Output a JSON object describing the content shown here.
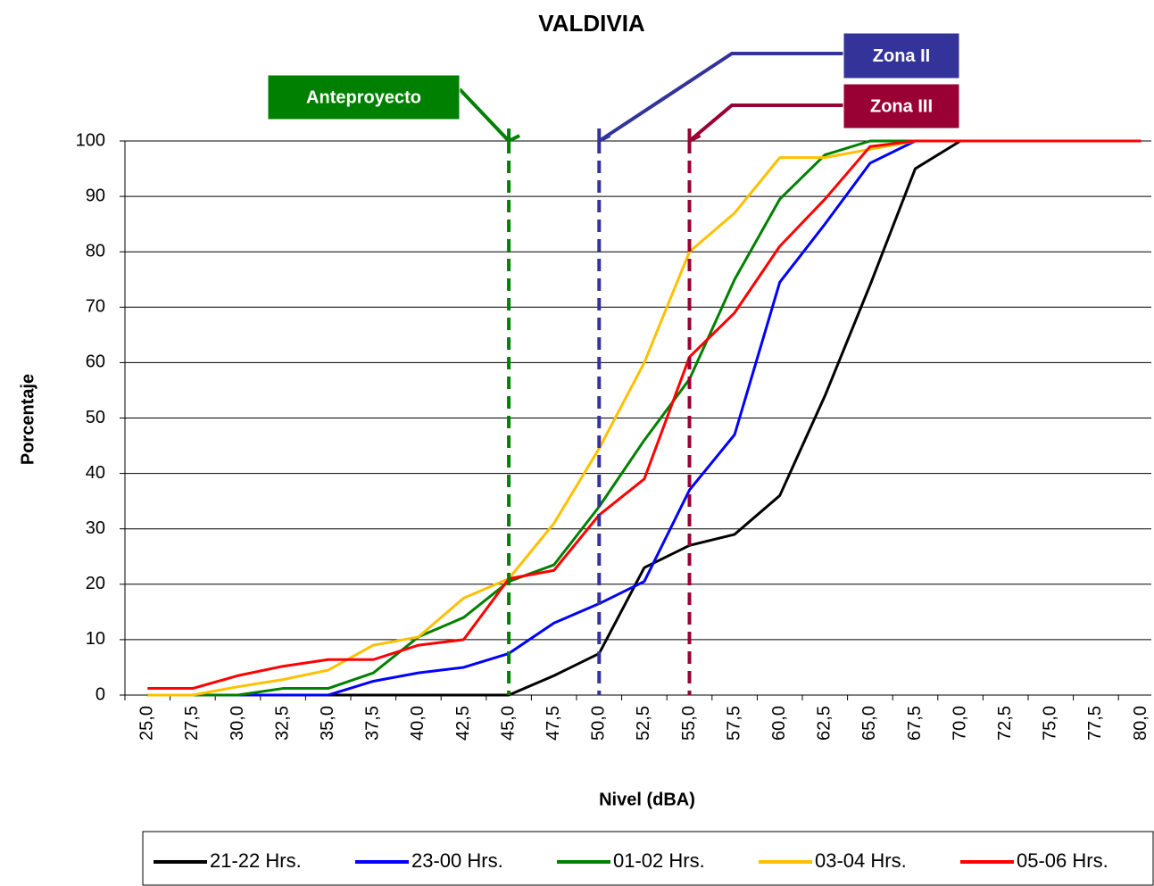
{
  "chart_data": {
    "type": "line",
    "title": "VALDIVIA",
    "xlabel": "Nivel (dBA)",
    "ylabel": "Porcentaje",
    "categories": [
      "25,0",
      "27,5",
      "30,0",
      "32,5",
      "35,0",
      "37,5",
      "40,0",
      "42,5",
      "45,0",
      "47,5",
      "50,0",
      "52,5",
      "55,0",
      "57,5",
      "60,0",
      "62,5",
      "65,0",
      "67,5",
      "70,0",
      "72,5",
      "75,0",
      "77,5",
      "80,0"
    ],
    "ylim": [
      0,
      100
    ],
    "yticks": [
      0,
      10,
      20,
      30,
      40,
      50,
      60,
      70,
      80,
      90,
      100
    ],
    "grid": true,
    "legend": "bottom",
    "series": [
      {
        "name": "21-22 Hrs.",
        "color": "#000000",
        "values": [
          0,
          0,
          0,
          0,
          0,
          0,
          0,
          0,
          0,
          3.5,
          7.5,
          23,
          27,
          29,
          36,
          54,
          74,
          95,
          100,
          100,
          100,
          100,
          100
        ]
      },
      {
        "name": "23-00 Hrs.",
        "color": "#0000ff",
        "values": [
          0,
          0,
          0,
          0,
          0,
          2.5,
          4,
          5,
          7.5,
          13,
          16.5,
          20.5,
          37,
          47,
          74.5,
          85,
          96,
          100,
          100,
          100,
          100,
          100,
          100
        ]
      },
      {
        "name": "01-02 Hrs.",
        "color": "#008000",
        "values": [
          0,
          0,
          0,
          1.2,
          1.2,
          4,
          10.5,
          14,
          20.5,
          23.5,
          34,
          46,
          57,
          75,
          89.5,
          97.5,
          100,
          100,
          100,
          100,
          100,
          100,
          100
        ]
      },
      {
        "name": "03-04 Hrs.",
        "color": "#ffc000",
        "values": [
          0,
          0,
          1.5,
          2.8,
          4.5,
          9,
          10.5,
          17.5,
          21,
          31,
          44.5,
          60,
          80,
          87,
          97,
          97,
          98.5,
          100,
          100,
          100,
          100,
          100,
          100
        ]
      },
      {
        "name": "05-06 Hrs.",
        "color": "#ff0000",
        "values": [
          1.2,
          1.2,
          3.5,
          5.2,
          6.4,
          6.4,
          9,
          10,
          21,
          22.5,
          32.5,
          39,
          61,
          69,
          81,
          89.5,
          99,
          100,
          100,
          100,
          100,
          100,
          100
        ]
      }
    ],
    "annotations": [
      {
        "text": "Anteproyecto",
        "x": "45,0",
        "color": "#008000"
      },
      {
        "text": "Zona II",
        "x": "50,0",
        "color": "#333399"
      },
      {
        "text": "Zona III",
        "x": "55,0",
        "color": "#990033"
      }
    ]
  }
}
